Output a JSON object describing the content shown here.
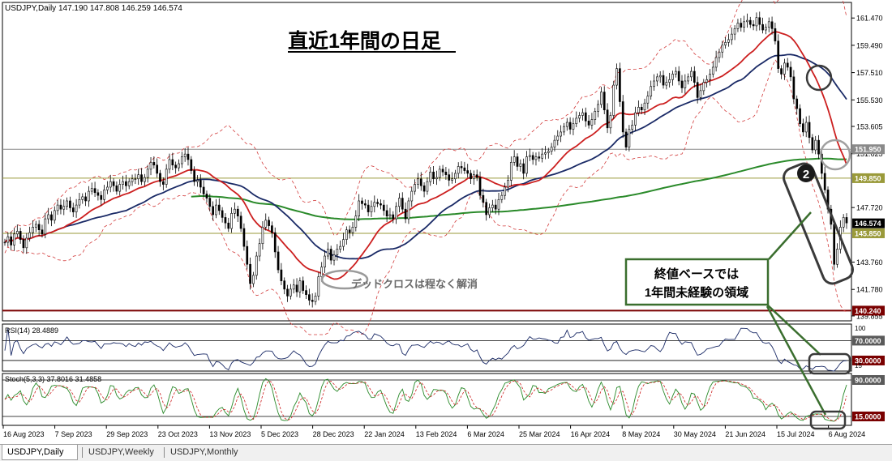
{
  "header": {
    "symbol_line": "USDJPY,Daily  147.190 147.808 146.259 146.574",
    "title": "直近1年間の日足"
  },
  "chart_data": {
    "type": "candlestick",
    "symbol": "USDJPY",
    "timeframe": "Daily",
    "ohlc_last": {
      "open": 147.19,
      "high": 147.808,
      "low": 146.259,
      "close": 146.574
    },
    "x_tick_labels": [
      "16 Aug 2023",
      "7 Sep 2023",
      "29 Sep 2023",
      "23 Oct 2023",
      "13 Nov 2023",
      "5 Dec 2023",
      "28 Dec 2023",
      "22 Jan 2024",
      "13 Feb 2024",
      "6 Mar 2024",
      "25 Mar 2024",
      "16 Apr 2024",
      "8 May 2024",
      "30 May 2024",
      "21 Jun 2024",
      "15 Jul 2024",
      "6 Aug 2024"
    ],
    "y_tick_labels": [
      "161.470",
      "159.490",
      "157.510",
      "155.530",
      "153.605",
      "151.625",
      "147.720",
      "143.760",
      "141.780",
      "139.855"
    ],
    "ylim": [
      139.5,
      162.6
    ],
    "price_levels": [
      {
        "value": 151.95,
        "label": "151.950",
        "color": "#8a8a8a"
      },
      {
        "value": 149.85,
        "label": "149.850",
        "color": "#9a9a3a"
      },
      {
        "value": 146.574,
        "label": "146.574",
        "color": "#000000"
      },
      {
        "value": 145.85,
        "label": "145.850",
        "color": "#9a9a3a"
      },
      {
        "value": 140.24,
        "label": "140.240",
        "color": "#7a0000"
      }
    ],
    "closes": [
      145.2,
      145.6,
      145.0,
      145.8,
      146.0,
      145.4,
      144.8,
      145.5,
      145.9,
      146.3,
      146.5,
      146.1,
      145.8,
      146.9,
      147.2,
      146.8,
      147.5,
      147.9,
      147.6,
      147.8,
      148.2,
      147.7,
      147.4,
      147.9,
      148.3,
      148.5,
      148.2,
      148.9,
      149.1,
      148.8,
      148.6,
      148.3,
      149.0,
      149.2,
      149.6,
      149.3,
      148.9,
      149.4,
      149.6,
      149.3,
      149.6,
      149.8,
      149.8,
      150.1,
      149.6,
      149.9,
      150.5,
      151.0,
      150.8,
      150.2,
      149.6,
      149.4,
      150.5,
      151.2,
      150.8,
      150.6,
      150.9,
      151.4,
      151.6,
      151.2,
      150.4,
      149.6,
      149.7,
      149.2,
      148.7,
      148.4,
      147.8,
      147.2,
      147.9,
      147.5,
      147.0,
      146.6,
      146.2,
      147.3,
      147.6,
      147.1,
      146.2,
      144.9,
      143.6,
      142.2,
      142.8,
      144.2,
      145.1,
      146.3,
      146.8,
      146.4,
      145.9,
      144.5,
      143.2,
      142.4,
      141.8,
      141.3,
      141.8,
      142.1,
      141.6,
      142.4,
      141.7,
      141.4,
      141.0,
      140.9,
      141.3,
      142.7,
      143.4,
      144.2,
      144.7,
      143.9,
      144.3,
      144.7,
      144.9,
      145.4,
      146.1,
      145.9,
      146.3,
      147.1,
      148.2,
      148.0,
      147.9,
      147.4,
      147.8,
      148.1,
      148.0,
      147.9,
      147.5,
      147.1,
      147.2,
      146.9,
      147.8,
      148.4,
      147.6,
      146.9,
      148.2,
      148.9,
      149.4,
      149.8,
      149.3,
      148.9,
      149.6,
      150.3,
      149.8,
      149.9,
      150.5,
      150.3,
      150.1,
      149.7,
      149.8,
      150.2,
      150.7,
      150.6,
      150.4,
      150.2,
      149.8,
      150.1,
      149.9,
      148.6,
      148.1,
      147.2,
      147.7,
      147.9,
      147.6,
      148.3,
      148.6,
      149.2,
      149.7,
      151.0,
      151.4,
      150.7,
      150.9,
      150.2,
      151.4,
      151.5,
      151.2,
      151.4,
      151.3,
      151.6,
      151.7,
      151.8,
      152.1,
      152.6,
      152.9,
      153.2,
      153.6,
      153.9,
      153.4,
      153.8,
      154.2,
      154.4,
      154.6,
      154.0,
      153.7,
      154.1,
      154.7,
      155.2,
      156.1,
      154.8,
      153.5,
      154.4,
      156.6,
      157.8,
      155.4,
      153.2,
      152.1,
      153.4,
      153.7,
      154.6,
      155.0,
      154.8,
      155.3,
      155.8,
      156.5,
      156.9,
      157.2,
      157.3,
      156.6,
      156.8,
      157.0,
      157.4,
      157.6,
      156.9,
      156.4,
      156.9,
      157.2,
      157.6,
      156.8,
      155.7,
      156.2,
      156.8,
      157.0,
      157.4,
      157.9,
      158.6,
      159.0,
      159.5,
      159.7,
      159.9,
      160.3,
      160.7,
      161.1,
      160.8,
      161.2,
      161.3,
      161.0,
      160.9,
      161.5,
      161.0,
      160.6,
      160.8,
      161.2,
      160.7,
      159.8,
      157.8,
      157.4,
      158.2,
      157.9,
      157.2,
      155.6,
      154.9,
      153.8,
      153.2,
      153.9,
      152.8,
      151.9,
      152.6,
      151.6,
      150.2,
      149.0,
      147.6,
      146.5,
      143.6,
      144.7,
      146.3,
      147.0,
      146.6
    ],
    "indicators": {
      "rsi": {
        "label": "RSI(14) 28.4889",
        "period": 14,
        "value": 28.4889,
        "levels": [
          "70.0000",
          "30.0000"
        ],
        "axis_labels": [
          "100",
          "15"
        ]
      },
      "stochastic": {
        "label": "Stoch(5,3,3) 37.8016 31.4858",
        "k": 37.8016,
        "d": 31.4858,
        "levels": [
          "90.0000",
          "15.0000"
        ]
      }
    }
  },
  "annotations": {
    "dead_cross": "デッドクロスは程なく解消",
    "marker_number": "2",
    "callout_line1": "終値ベースでは",
    "callout_line2": "1年間未経験の領域"
  },
  "tabs": [
    {
      "label": "USDJPY,Daily",
      "active": true
    },
    {
      "label": "USDJPY,Weekly",
      "active": false
    },
    {
      "label": "USDJPY,Monthly",
      "active": false
    }
  ],
  "colors": {
    "ma_short": "#cc1f1f",
    "ma_mid": "#1a2a66",
    "ma_long": "#2a8a2a",
    "bollinger": "#d23b3b",
    "annotation_green": "#3a6e2e",
    "title_text": "#000000"
  }
}
